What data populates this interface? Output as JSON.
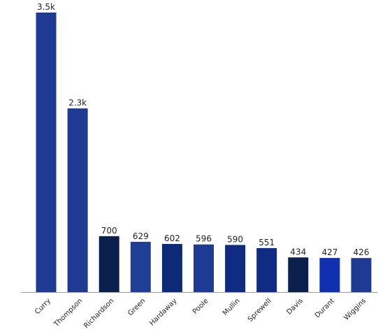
{
  "chart_data": {
    "type": "bar",
    "title": "",
    "xlabel": "",
    "ylabel": "",
    "ylim": [
      0,
      3500
    ],
    "grid": false,
    "legend": "none",
    "categories": [
      "Curry",
      "Thompson",
      "Richardson",
      "Green",
      "Hardaway",
      "Poole",
      "Mullin",
      "Sprewell",
      "Davis",
      "Durant",
      "Wiggins"
    ],
    "values": [
      3500,
      2300,
      700,
      629,
      602,
      596,
      590,
      551,
      434,
      427,
      426
    ],
    "data_labels": [
      "3.5k",
      "2.3k",
      "700",
      "629",
      "602",
      "596",
      "590",
      "551",
      "434",
      "427",
      "426"
    ],
    "colors": [
      "#1f3a93",
      "#1f3a93",
      "#0b1f4d",
      "#1f3e95",
      "#0d2a78",
      "#1d3a94",
      "#0f2c82",
      "#0f2c82",
      "#0b1f4d",
      "#1030b0",
      "#1f3a93"
    ]
  }
}
